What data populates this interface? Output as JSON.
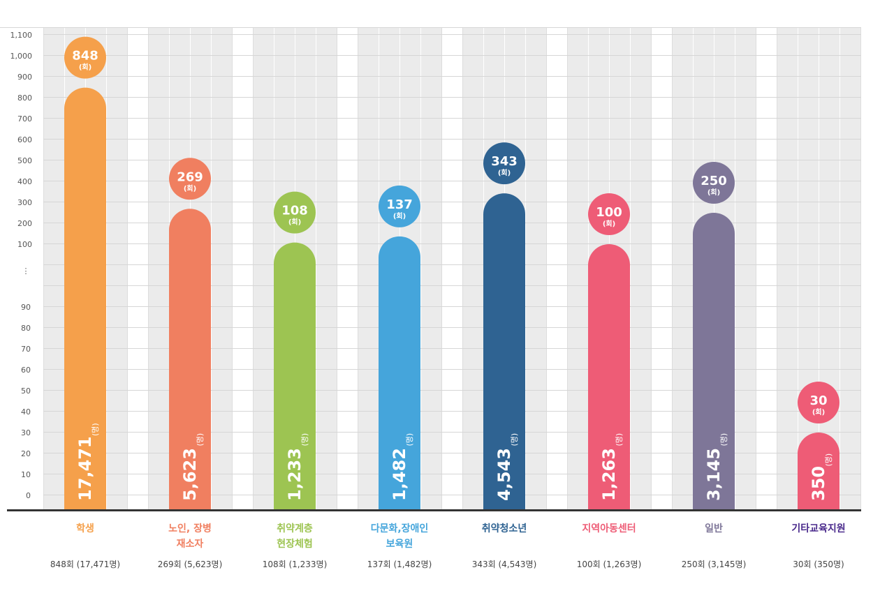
{
  "chart_data": {
    "type": "bar",
    "ylim": [
      0,
      1100
    ],
    "y_ticks_upper": [
      "100",
      "200",
      "300",
      "400",
      "500",
      "600",
      "700",
      "800",
      "900",
      "1,000",
      "1,100"
    ],
    "y_ticks_lower": [
      "0",
      "10",
      "20",
      "30",
      "40",
      "50",
      "60",
      "70",
      "80",
      "90"
    ],
    "axis_break_symbol": "⋮",
    "sessions_unit": "(회)",
    "people_unit": "(명)",
    "categories": [
      {
        "label": "학생",
        "sessions": 848,
        "sessions_text": "848",
        "people_text": "17,471",
        "summary": "848회 (17,471명)",
        "color": "#F5A04B"
      },
      {
        "label": "노인, 장병\n재소자",
        "sessions": 269,
        "sessions_text": "269",
        "people_text": "5,623",
        "summary": "269회 (5,623명)",
        "color": "#F07F60"
      },
      {
        "label": "취약계층\n현장체험",
        "sessions": 108,
        "sessions_text": "108",
        "people_text": "1,233",
        "summary": "108회 (1,233명)",
        "color": "#9DC452"
      },
      {
        "label": "다문화,장애인\n보육원",
        "sessions": 137,
        "sessions_text": "137",
        "people_text": "1,482",
        "summary": "137회 (1,482명)",
        "color": "#45A5DB"
      },
      {
        "label": "취약청소년",
        "sessions": 343,
        "sessions_text": "343",
        "people_text": "4,543",
        "summary": "343회 (4,543명)",
        "color": "#2F6392"
      },
      {
        "label": "지역아동센터",
        "sessions": 100,
        "sessions_text": "100",
        "people_text": "1,263",
        "summary": "100회 (1,263명)",
        "color": "#EE5C76"
      },
      {
        "label": "일반",
        "sessions": 250,
        "sessions_text": "250",
        "people_text": "3,145",
        "summary": "250회 (3,145명)",
        "color": "#7E7698"
      },
      {
        "label": "기타교육지원",
        "sessions": 30,
        "sessions_text": "30",
        "people_text": "350",
        "summary": "30회 (350명)",
        "color": "#EE5C76",
        "label_color": "#4A2A8C"
      }
    ]
  }
}
